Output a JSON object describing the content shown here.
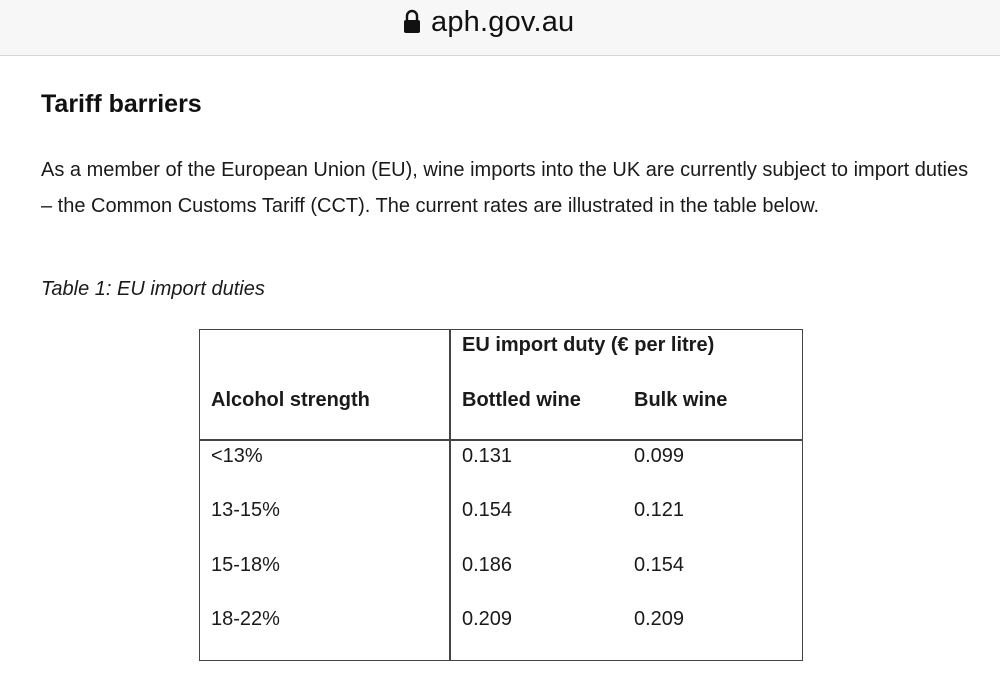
{
  "browser": {
    "url": "aph.gov.au",
    "lock_icon": "lock-icon"
  },
  "page": {
    "heading": "Tariff barriers",
    "paragraph": "As a member of the European Union (EU), wine imports into the UK are currently subject to import duties – the Common Customs Tariff (CCT). The current rates are illustrated in the table below.",
    "table_caption": "Table 1: EU import duties"
  },
  "table": {
    "group_header": "EU import duty (€ per litre)",
    "headers": [
      "Alcohol strength",
      "Bottled wine",
      "Bulk wine"
    ],
    "rows": [
      [
        "<13%",
        "0.131",
        "0.099"
      ],
      [
        "13-15%",
        "0.154",
        "0.121"
      ],
      [
        "15-18%",
        "0.186",
        "0.154"
      ],
      [
        "18-22%",
        "0.209",
        "0.209"
      ]
    ]
  }
}
